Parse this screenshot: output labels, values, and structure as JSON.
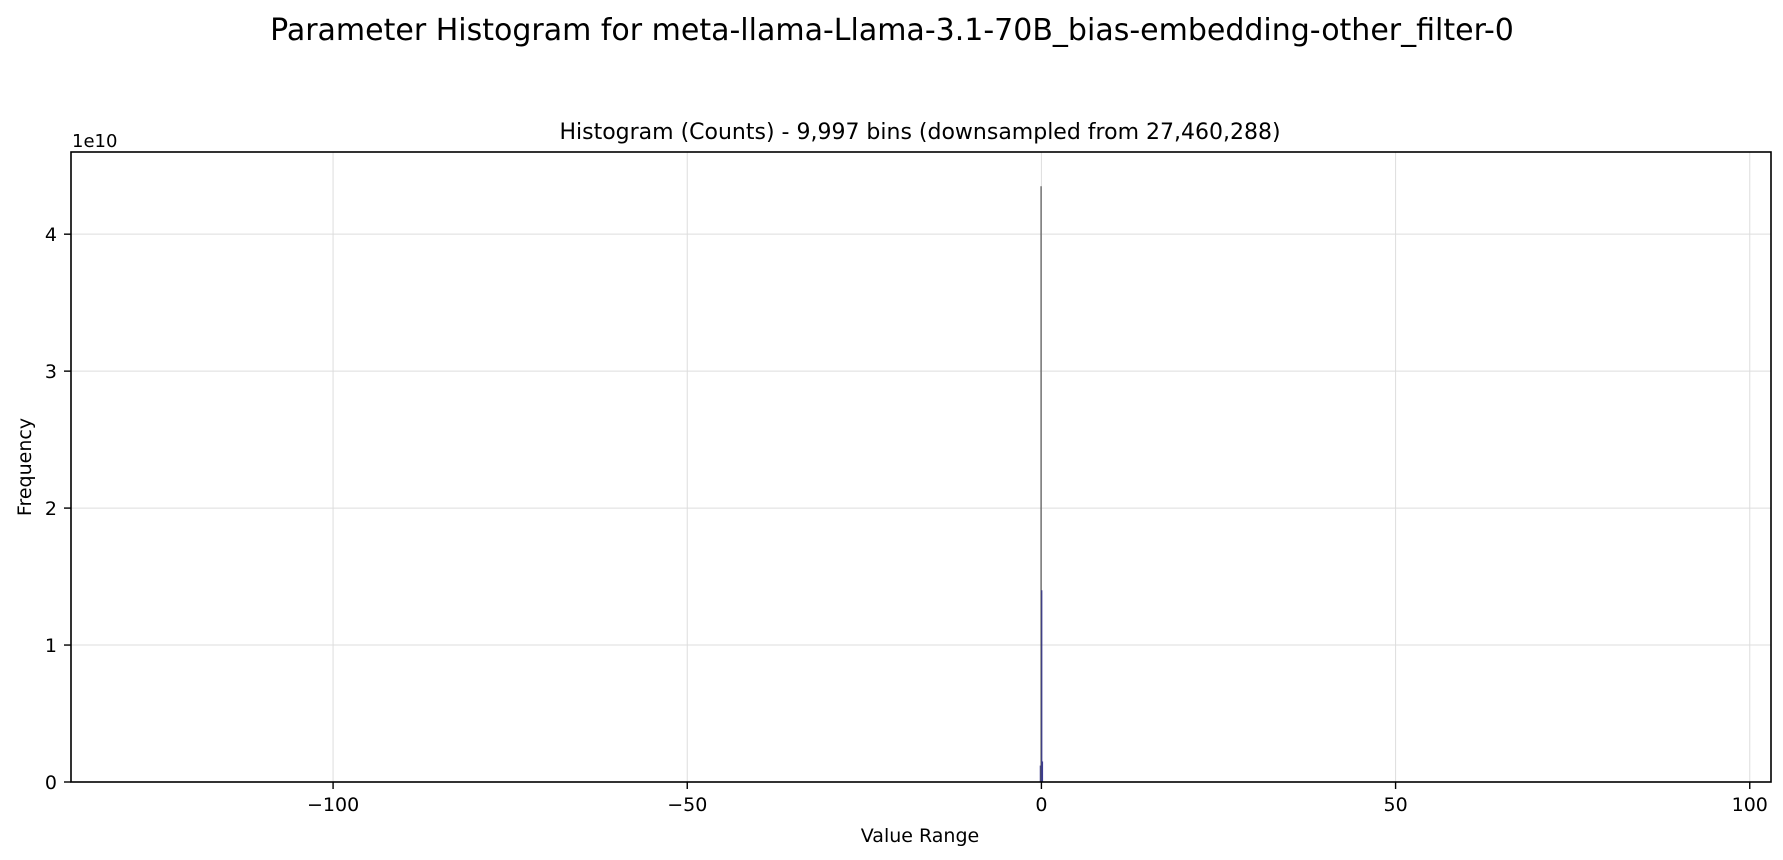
{
  "chart_data": {
    "type": "bar",
    "suptitle": "Parameter Histogram for meta-llama-Llama-3.1-70B_bias-embedding-other_filter-0",
    "title": "Histogram (Counts) - 9,997 bins (downsampled from 27,460,288)",
    "xlabel": "Value Range",
    "ylabel": "Frequency",
    "y_offset_label": "1e10",
    "y_scale": 10000000000,
    "xlim": [
      -137,
      103
    ],
    "ylim": [
      0,
      4.6
    ],
    "x_ticks": [
      -100,
      -50,
      0,
      50,
      100
    ],
    "x_tick_labels": [
      "−100",
      "−50",
      "0",
      "50",
      "100"
    ],
    "y_ticks": [
      0,
      1,
      2,
      3,
      4
    ],
    "y_tick_labels": [
      "0",
      "1",
      "2",
      "3",
      "4"
    ],
    "grid": true,
    "colors": {
      "bar": "#3b3b8f",
      "bar_tall": "#555555",
      "grid": "#dddddd"
    },
    "series": [
      {
        "name": "counts",
        "bins": [
          {
            "x": -0.15,
            "value": 0.12
          },
          {
            "x": -0.05,
            "value": 4.35
          },
          {
            "x": 0.05,
            "value": 1.4
          },
          {
            "x": 0.15,
            "value": 0.15
          }
        ]
      }
    ]
  }
}
